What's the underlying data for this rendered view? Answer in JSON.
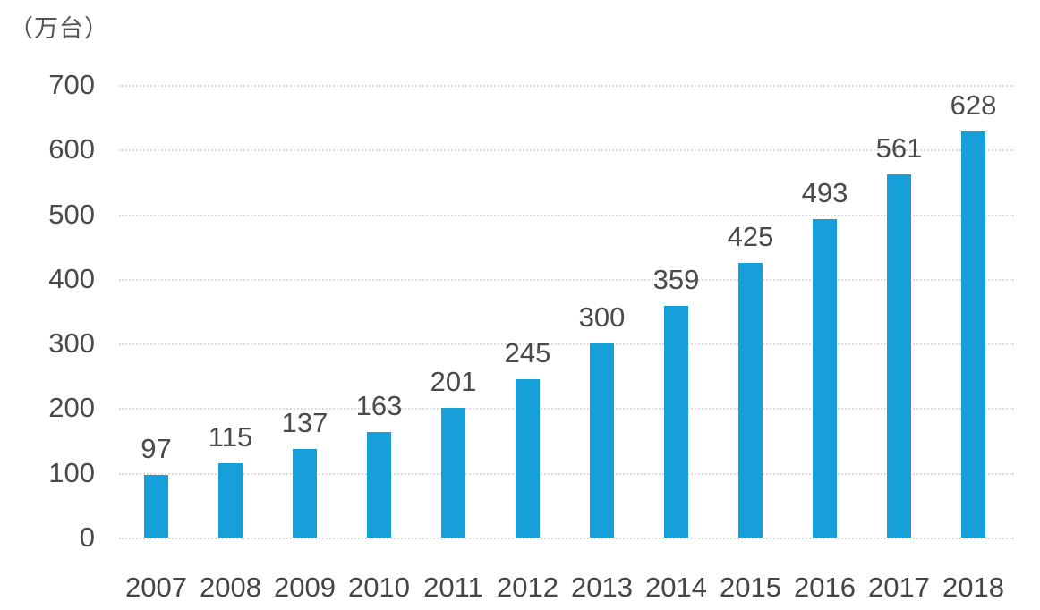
{
  "colors": {
    "bar": "#169fd9",
    "grid": "#dcdcdc",
    "text": "#4a4a4a",
    "background": "#ffffff"
  },
  "chart_data": {
    "type": "bar",
    "title": "",
    "unit_label": "（万台）",
    "categories": [
      "2007",
      "2008",
      "2009",
      "2010",
      "2011",
      "2012",
      "2013",
      "2014",
      "2015",
      "2016",
      "2017",
      "2018"
    ],
    "values": [
      97,
      115,
      137,
      163,
      201,
      245,
      300,
      359,
      425,
      493,
      561,
      628
    ],
    "xlabel": "",
    "ylabel": "（万台）",
    "ylim": [
      0,
      700
    ],
    "yticks": [
      0,
      100,
      200,
      300,
      400,
      500,
      600,
      700
    ],
    "grid": "horizontal-dotted",
    "legend": "none",
    "data_labels": "above-bars"
  }
}
